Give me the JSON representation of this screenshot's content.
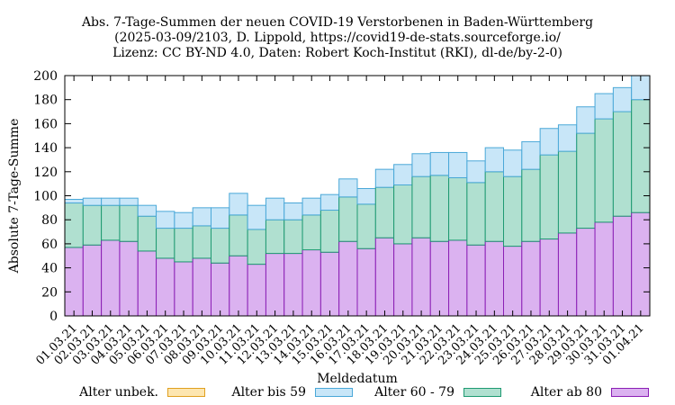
{
  "chart_data": {
    "type": "bar",
    "stacked": true,
    "title": "Abs. 7-Tage-Summen der neuen COVID-19 Verstorbenen in Baden-Württemberg",
    "subtitle_lines": [
      "(2025-03-09/2103, D. Lippold, https://covid19-de-stats.sourceforge.io/",
      "Lizenz: CC BY-ND 4.0, Daten: Robert Koch-Institut (RKI), dl-de/by-2-0)"
    ],
    "xlabel": "Meldedatum",
    "ylabel": "Absolute 7-Tage-Summe",
    "ylim": [
      0,
      200
    ],
    "yticks": [
      0,
      20,
      40,
      60,
      80,
      100,
      120,
      140,
      160,
      180,
      200
    ],
    "grid": false,
    "legend_position": "bottom",
    "categories": [
      "01.03.21",
      "02.03.21",
      "03.03.21",
      "04.03.21",
      "05.03.21",
      "06.03.21",
      "07.03.21",
      "08.03.21",
      "09.03.21",
      "10.03.21",
      "11.03.21",
      "12.03.21",
      "13.03.21",
      "14.03.21",
      "15.03.21",
      "16.03.21",
      "17.03.21",
      "18.03.21",
      "19.03.21",
      "20.03.21",
      "21.03.21",
      "22.03.21",
      "23.03.21",
      "24.03.21",
      "25.03.21",
      "26.03.21",
      "27.03.21",
      "28.03.21",
      "29.03.21",
      "30.03.21",
      "31.03.21",
      "01.04.21"
    ],
    "series": [
      {
        "name": "Alter ab 80",
        "color": "#dbb2f0",
        "stroke": "#8b1fb5",
        "values": [
          57,
          59,
          63,
          62,
          54,
          48,
          45,
          48,
          44,
          50,
          43,
          52,
          52,
          55,
          53,
          62,
          56,
          65,
          60,
          65,
          62,
          63,
          59,
          62,
          58,
          62,
          64,
          69,
          73,
          78,
          83,
          86
        ]
      },
      {
        "name": "Alter 60 - 79",
        "color": "#b0e0d0",
        "stroke": "#1f9a72",
        "values": [
          37,
          33,
          29,
          30,
          29,
          25,
          28,
          27,
          29,
          34,
          29,
          28,
          28,
          29,
          35,
          37,
          37,
          42,
          49,
          51,
          55,
          52,
          52,
          58,
          58,
          60,
          70,
          68,
          79,
          86,
          87,
          94
        ]
      },
      {
        "name": "Alter bis 59",
        "color": "#c8e6f8",
        "stroke": "#4aa8d8",
        "values": [
          3,
          6,
          6,
          6,
          9,
          14,
          13,
          15,
          17,
          18,
          20,
          18,
          14,
          14,
          13,
          15,
          13,
          15,
          17,
          19,
          19,
          21,
          18,
          20,
          22,
          23,
          22,
          22,
          22,
          21,
          20,
          20
        ]
      },
      {
        "name": "Alter unbek.",
        "color": "#fde6b0",
        "stroke": "#e0a020",
        "values": [
          0,
          0,
          0,
          0,
          0,
          0,
          0,
          0,
          0,
          0,
          0,
          0,
          0,
          0,
          0,
          0,
          0,
          0,
          0,
          0,
          0,
          0,
          0,
          0,
          0,
          0,
          0,
          0,
          0,
          0,
          0,
          0
        ]
      }
    ],
    "legend_order": [
      "Alter unbek.",
      "Alter bis 59",
      "Alter 60 - 79",
      "Alter ab 80"
    ]
  }
}
